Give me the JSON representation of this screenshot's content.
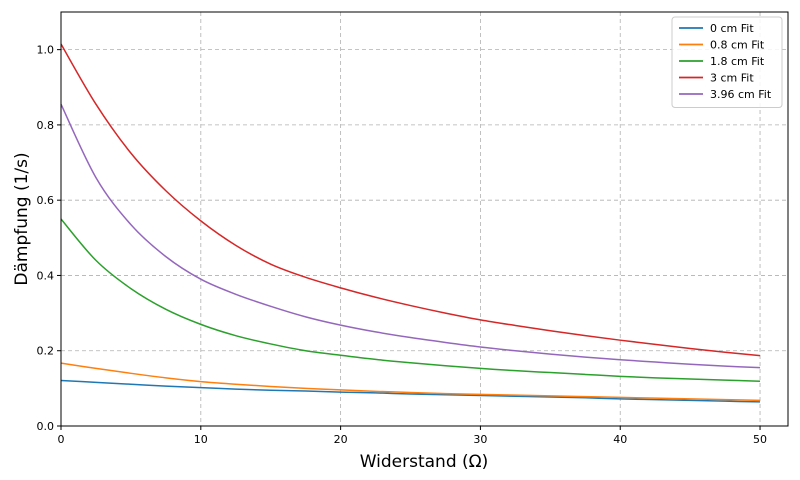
{
  "chart_data": {
    "type": "line",
    "title": "",
    "xlabel": "Widerstand (Ω)",
    "ylabel": "Dämpfung (1/s)",
    "xlim": [
      0,
      52
    ],
    "ylim": [
      0,
      1.1
    ],
    "xticks": [
      0,
      10,
      20,
      30,
      40,
      50
    ],
    "yticks": [
      0.0,
      0.2,
      0.4,
      0.6,
      0.8,
      1.0
    ],
    "xtick_labels": [
      "0",
      "10",
      "20",
      "30",
      "40",
      "50"
    ],
    "ytick_labels": [
      "0.0",
      "0.2",
      "0.4",
      "0.6",
      "0.8",
      "1.0"
    ],
    "grid": true,
    "legend_position": "top-right",
    "x": [
      0,
      2.5,
      5,
      7.5,
      10,
      12.5,
      15,
      17.5,
      20,
      22.5,
      25,
      27.5,
      30,
      32.5,
      35,
      37.5,
      40,
      42.5,
      45,
      47.5,
      50
    ],
    "series": [
      {
        "name": "0 cm Fit",
        "color": "#1f77b4",
        "values": [
          0.121,
          0.116,
          0.111,
          0.106,
          0.102,
          0.098,
          0.095,
          0.093,
          0.09,
          0.088,
          0.085,
          0.083,
          0.081,
          0.079,
          0.077,
          0.075,
          0.072,
          0.07,
          0.068,
          0.066,
          0.064
        ]
      },
      {
        "name": "0.8 cm Fit",
        "color": "#ff7f0e",
        "values": [
          0.167,
          0.153,
          0.14,
          0.128,
          0.118,
          0.111,
          0.105,
          0.1,
          0.096,
          0.092,
          0.089,
          0.086,
          0.084,
          0.082,
          0.08,
          0.078,
          0.076,
          0.074,
          0.072,
          0.07,
          0.068
        ]
      },
      {
        "name": "1.8 cm Fit",
        "color": "#2ca02c",
        "values": [
          0.55,
          0.44,
          0.365,
          0.31,
          0.27,
          0.24,
          0.218,
          0.2,
          0.188,
          0.177,
          0.168,
          0.16,
          0.153,
          0.147,
          0.142,
          0.137,
          0.132,
          0.128,
          0.125,
          0.122,
          0.119
        ]
      },
      {
        "name": "3 cm Fit",
        "color": "#d62728",
        "values": [
          1.015,
          0.855,
          0.725,
          0.625,
          0.545,
          0.48,
          0.43,
          0.395,
          0.367,
          0.342,
          0.32,
          0.3,
          0.282,
          0.267,
          0.253,
          0.24,
          0.228,
          0.217,
          0.206,
          0.196,
          0.187
        ]
      },
      {
        "name": "3.96 cm Fit",
        "color": "#9467bd",
        "values": [
          0.855,
          0.66,
          0.535,
          0.45,
          0.39,
          0.35,
          0.318,
          0.29,
          0.268,
          0.25,
          0.235,
          0.222,
          0.21,
          0.2,
          0.191,
          0.183,
          0.176,
          0.17,
          0.164,
          0.159,
          0.155
        ]
      }
    ]
  }
}
